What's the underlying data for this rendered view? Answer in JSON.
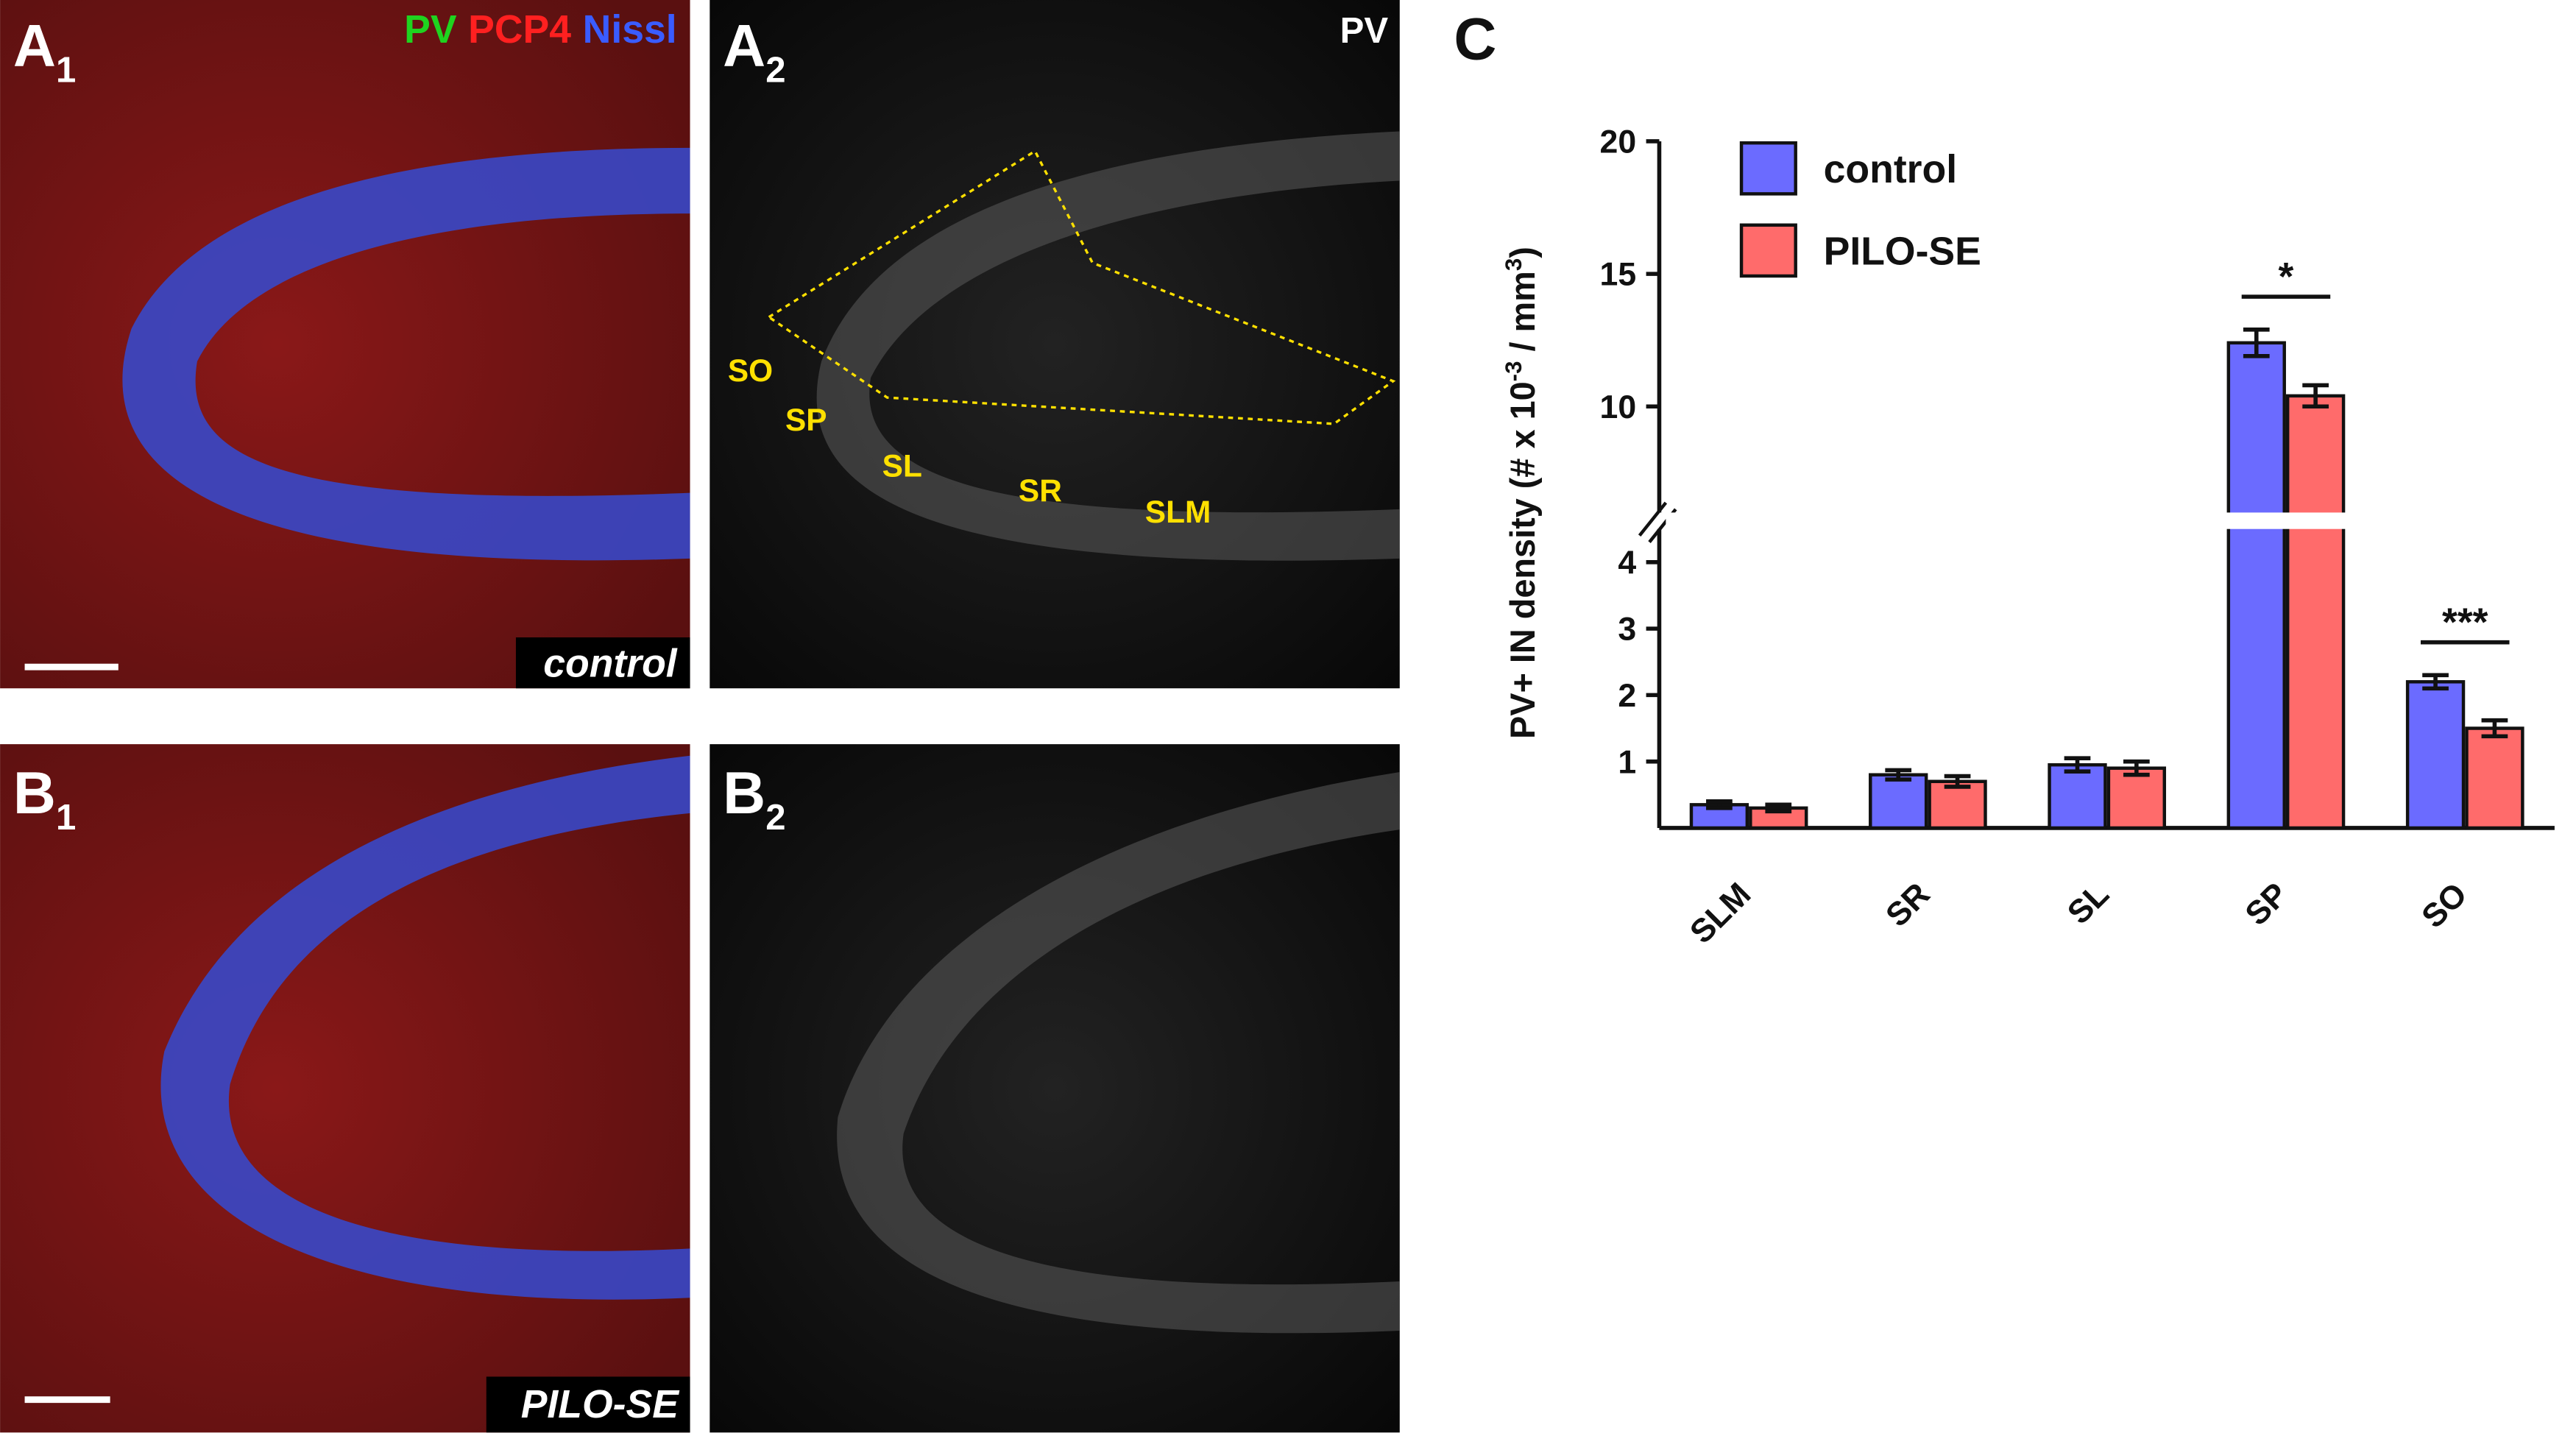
{
  "panels": [
    {
      "label": "A",
      "sub": "1",
      "condition": "control"
    },
    {
      "label": "A",
      "sub": "2",
      "stain": "PV",
      "regions": [
        "SO",
        "SP",
        "SL",
        "SR",
        "SLM"
      ]
    },
    {
      "label": "B",
      "sub": "1",
      "condition": "PILO-SE"
    },
    {
      "label": "B",
      "sub": "2"
    }
  ],
  "channels": [
    {
      "name": "PV",
      "color": "#1fd31f"
    },
    {
      "name": "PCP4",
      "color": "#ff2020"
    },
    {
      "name": "Nissl",
      "color": "#3a5cff"
    }
  ],
  "chart_data": {
    "type": "bar",
    "panel_label": "C",
    "ylabel": [
      {
        "text": "PV+ IN density (# x 10"
      },
      {
        "text": "-3",
        "sup": true
      },
      {
        "text": " / mm"
      },
      {
        "text": "3",
        "sup": true
      },
      {
        "text": ")"
      }
    ],
    "categories": [
      "SLM",
      "SR",
      "SL",
      "SP",
      "SO"
    ],
    "series": [
      {
        "name": "control",
        "color": "#6b6bff",
        "values": [
          0.35,
          0.8,
          0.95,
          12.4,
          2.2
        ],
        "errors": [
          0.05,
          0.07,
          0.1,
          0.5,
          0.1
        ]
      },
      {
        "name": "PILO-SE",
        "color": "#ff6b6b",
        "values": [
          0.3,
          0.7,
          0.9,
          10.4,
          1.5
        ],
        "errors": [
          0.05,
          0.08,
          0.1,
          0.4,
          0.12
        ]
      }
    ],
    "y_segments": [
      {
        "ylim": [
          0,
          4.5
        ],
        "yticks": [
          1,
          2,
          3,
          4
        ]
      },
      {
        "ylim": [
          6,
          20
        ],
        "yticks": [
          10,
          15,
          20
        ]
      }
    ],
    "annotations": [
      {
        "category": "SP",
        "text": "*"
      },
      {
        "category": "SO",
        "text": "***"
      }
    ],
    "legend": "top-left"
  }
}
